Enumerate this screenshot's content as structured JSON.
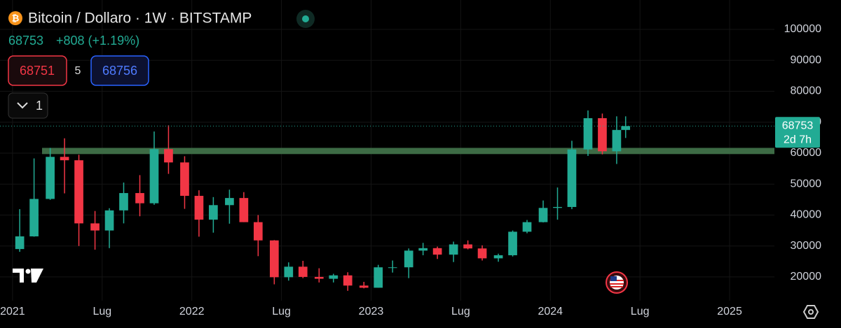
{
  "ui": {
    "symbol": "Bitcoin / Dollaro · 1W · BITSTAMP",
    "last": "68753",
    "change": "+808 (+1.19%)",
    "bid": "68751",
    "spread": "5",
    "ask": "68756",
    "indicators": "1"
  },
  "chart_data": {
    "type": "candlestick",
    "x": [
      2021.04,
      2021.12,
      2021.21,
      2021.29,
      2021.37,
      2021.46,
      2021.54,
      2021.62,
      2021.71,
      2021.79,
      2021.87,
      2021.96,
      2022.04,
      2022.12,
      2022.21,
      2022.29,
      2022.37,
      2022.46,
      2022.54,
      2022.62,
      2022.71,
      2022.79,
      2022.87,
      2022.96,
      2023.04,
      2023.12,
      2023.21,
      2023.29,
      2023.37,
      2023.46,
      2023.54,
      2023.62,
      2023.71,
      2023.79,
      2023.87,
      2023.96,
      2024.04,
      2024.12,
      2024.21,
      2024.29,
      2024.37,
      2024.42
    ],
    "open": [
      29000,
      33100,
      45200,
      58800,
      57700,
      37300,
      35000,
      41500,
      47100,
      43800,
      61300,
      57000,
      46200,
      38500,
      43200,
      45500,
      37700,
      31800,
      19900,
      23300,
      20000,
      19400,
      20500,
      17200,
      16500,
      23100,
      23100,
      28500,
      29300,
      27200,
      30500,
      29200,
      26000,
      27000,
      34600,
      37700,
      42300,
      42600,
      61200,
      71300,
      60600,
      67500
    ],
    "high": [
      41900,
      58300,
      61700,
      64800,
      59500,
      41300,
      42200,
      50500,
      52900,
      67000,
      69000,
      59000,
      48000,
      45800,
      48200,
      47400,
      40000,
      31900,
      24700,
      25200,
      22800,
      21000,
      21500,
      18400,
      23900,
      25300,
      29200,
      31000,
      29800,
      31400,
      31800,
      30200,
      27500,
      35000,
      38400,
      44700,
      48900,
      64000,
      73800,
      72800,
      71900,
      71900
    ],
    "low": [
      28100,
      33000,
      44900,
      47000,
      30000,
      28800,
      29300,
      37300,
      39600,
      43300,
      53300,
      42000,
      33000,
      34300,
      37200,
      37700,
      26700,
      17600,
      18800,
      19600,
      18200,
      18200,
      15500,
      16300,
      16500,
      21400,
      19600,
      27000,
      25800,
      24800,
      28900,
      25300,
      24900,
      26600,
      34100,
      37600,
      38500,
      41900,
      59100,
      59600,
      56500,
      64900
    ],
    "close": [
      33100,
      45200,
      58800,
      57700,
      37300,
      35000,
      41500,
      47100,
      43800,
      61300,
      57000,
      46200,
      38500,
      43200,
      45500,
      37700,
      31800,
      19900,
      23300,
      20000,
      19400,
      20500,
      17200,
      16500,
      23100,
      23100,
      28500,
      29300,
      27200,
      30500,
      29200,
      26000,
      27000,
      34600,
      37700,
      42300,
      42600,
      61200,
      71300,
      60600,
      67500,
      68753
    ],
    "up_color": "#22ab94",
    "down_color": "#f23645",
    "xlim": [
      2020.93,
      2025.25
    ],
    "xticks": [
      {
        "value": 2021,
        "label": "2021"
      },
      {
        "value": 2021.5,
        "label": "Lug"
      },
      {
        "value": 2022,
        "label": "2022"
      },
      {
        "value": 2022.5,
        "label": "Lug"
      },
      {
        "value": 2023,
        "label": "2023"
      },
      {
        "value": 2023.5,
        "label": "Lug"
      },
      {
        "value": 2024,
        "label": "2024"
      },
      {
        "value": 2024.5,
        "label": "Lug"
      },
      {
        "value": 2025,
        "label": "2025"
      }
    ],
    "ylim": [
      12300,
      109500
    ],
    "yticks": [
      20000,
      30000,
      40000,
      50000,
      60000,
      70000,
      80000,
      90000,
      100000
    ],
    "grid": true,
    "zone": {
      "from": 59700,
      "to": 61700,
      "color": "#3d6b45"
    },
    "last_price": 68753,
    "countdown": "2d 7h"
  }
}
